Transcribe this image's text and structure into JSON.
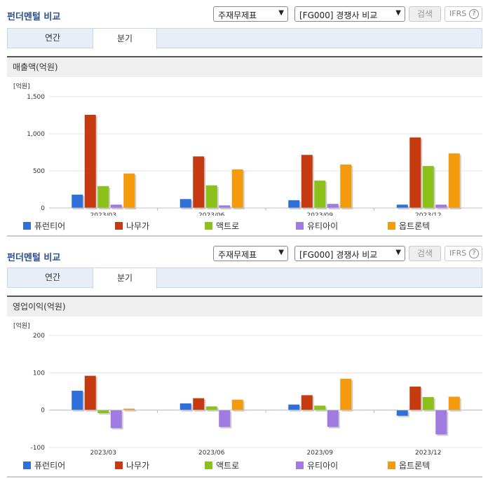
{
  "sections": [
    {
      "title": "펀더멘털 비교",
      "select1": "주재무제표",
      "select2": "[FG000] 경쟁사 비교",
      "search_label": "검색",
      "ifrs_label": "IFRS",
      "tabs": [
        "연간",
        "분기"
      ],
      "active_tab": 1,
      "metric_title": "매출액(억원)"
    },
    {
      "title": "펀더멘털 비교",
      "select1": "주재무제표",
      "select2": "[FG000] 경쟁사 비교",
      "search_label": "검색",
      "ifrs_label": "IFRS",
      "tabs": [
        "연간",
        "분기"
      ],
      "active_tab": 1,
      "metric_title": "영업이익(억원)"
    }
  ],
  "legend_colors": [
    "#2f6fd9",
    "#c63a12",
    "#8cc11c",
    "#a07ae0",
    "#f59a0c"
  ],
  "chart_data": [
    {
      "type": "bar",
      "unit_label": "[억원]",
      "categories": [
        "2023/03",
        "2023/06",
        "2023/09",
        "2023/12"
      ],
      "ylim": [
        0,
        1500
      ],
      "yticks": [
        0,
        500,
        1000,
        1500
      ],
      "ytick_labels": [
        "0",
        "500",
        "1,000",
        "1,500"
      ],
      "series": [
        {
          "name": "퓨런티어",
          "values": [
            180,
            120,
            105,
            45
          ]
        },
        {
          "name": "나무가",
          "values": [
            1255,
            695,
            715,
            950
          ]
        },
        {
          "name": "액트로",
          "values": [
            295,
            305,
            370,
            565
          ]
        },
        {
          "name": "유티아이",
          "values": [
            45,
            35,
            55,
            45
          ]
        },
        {
          "name": "옵트론텍",
          "values": [
            465,
            520,
            585,
            735
          ]
        }
      ]
    },
    {
      "type": "bar",
      "unit_label": "[억원]",
      "categories": [
        "2023/03",
        "2023/06",
        "2023/09",
        "2023/12"
      ],
      "ylim": [
        -100,
        200
      ],
      "yticks": [
        -100,
        0,
        100,
        200
      ],
      "ytick_labels": [
        "-100",
        "0",
        "100",
        "200"
      ],
      "series": [
        {
          "name": "퓨런티어",
          "values": [
            52,
            18,
            15,
            -15
          ]
        },
        {
          "name": "나무가",
          "values": [
            92,
            32,
            40,
            63
          ]
        },
        {
          "name": "액트로",
          "values": [
            -8,
            10,
            12,
            35
          ]
        },
        {
          "name": "유티아이",
          "values": [
            -48,
            -45,
            -45,
            -65
          ]
        },
        {
          "name": "옵트론텍",
          "values": [
            4,
            28,
            84,
            36
          ]
        }
      ]
    }
  ]
}
